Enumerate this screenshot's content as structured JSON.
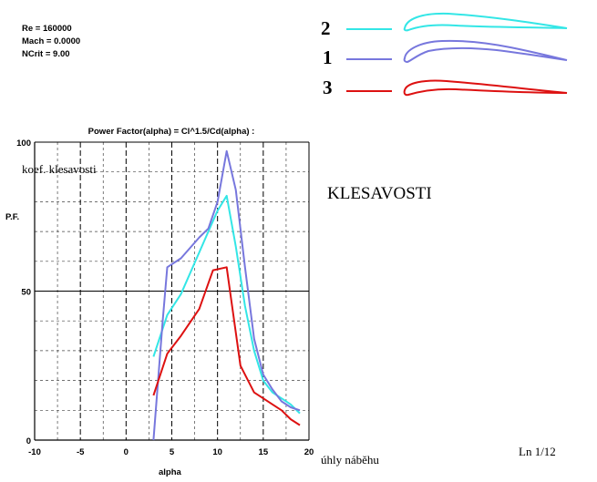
{
  "params": {
    "re": "Re = 160000",
    "mach": "Mach = 0.0000",
    "ncrit": "NCrit = 9.00"
  },
  "legend": [
    {
      "number": "2",
      "color": "#33e6e6"
    },
    {
      "number": "1",
      "color": "#7777dd"
    },
    {
      "number": "3",
      "color": "#dd1111"
    }
  ],
  "labels": {
    "coef": "koef. klesavosti",
    "big_title": "KLESAVOSTI",
    "uhly": "úhly  náběhu",
    "ln": "Ln 1/12",
    "pf": "P.F.",
    "alpha": "alpha"
  },
  "chart_data": {
    "type": "line",
    "title": "Power Factor(alpha) = Cl^1.5/Cd(alpha) :",
    "xlabel": "alpha",
    "ylabel": "P.F.",
    "xlim": [
      -10,
      20
    ],
    "ylim": [
      0,
      100
    ],
    "x_ticks": [
      -10,
      -5,
      0,
      5,
      10,
      15,
      20
    ],
    "y_ticks": [
      0,
      50,
      100
    ],
    "grid": true,
    "series": [
      {
        "name": "2",
        "color": "#33e6e6",
        "x": [
          3,
          4.5,
          6,
          8,
          9,
          10,
          11,
          12,
          13,
          14,
          15,
          16,
          17,
          18,
          19
        ],
        "y": [
          28,
          42,
          49,
          63,
          70,
          77,
          82,
          65,
          45,
          30,
          20,
          16,
          14,
          12,
          9
        ]
      },
      {
        "name": "1",
        "color": "#7777dd",
        "x": [
          3,
          4,
          4.5,
          6,
          8,
          9,
          10,
          11,
          12,
          13,
          14,
          15,
          16,
          17,
          18,
          19
        ],
        "y": [
          0,
          40,
          58,
          61,
          68,
          71,
          80,
          97,
          84,
          58,
          34,
          22,
          17,
          13,
          11,
          10
        ]
      },
      {
        "name": "3",
        "color": "#dd1111",
        "x": [
          3,
          4.5,
          6,
          8,
          9.5,
          11,
          12.5,
          14,
          15,
          16,
          17,
          18,
          19
        ],
        "y": [
          15,
          29,
          35,
          44,
          57,
          58,
          25,
          16,
          14,
          12,
          10,
          7,
          5
        ]
      }
    ]
  }
}
